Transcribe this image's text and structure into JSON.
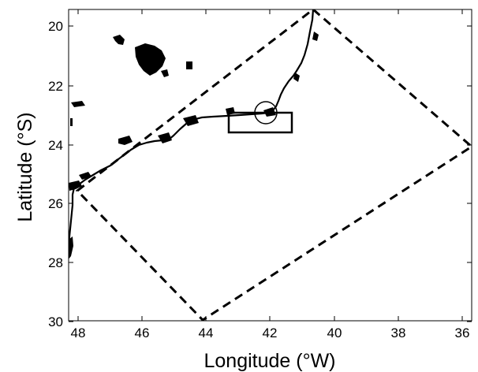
{
  "map": {
    "xlabel": "Longitude (°W)",
    "ylabel": "Latitude (°S)",
    "x_ticks": [
      "48",
      "46",
      "44",
      "42",
      "40",
      "38",
      "36"
    ],
    "y_ticks": [
      "20",
      "22",
      "24",
      "26",
      "28",
      "30"
    ]
  },
  "chart_data": {
    "type": "map",
    "xlabel": "Longitude (°W)",
    "ylabel": "Latitude (°S)",
    "xlim": [
      48.6,
      35.0
    ],
    "ylim": [
      30.2,
      19.4
    ],
    "grid": false,
    "dashed_quadrilateral": [
      [
        39.7,
        19.4
      ],
      [
        35.0,
        24.0
      ],
      [
        44.0,
        29.9
      ],
      [
        48.5,
        25.6
      ]
    ],
    "rectangle": {
      "lon_min": 41.2,
      "lon_max": 43.3,
      "lat_min": 22.9,
      "lat_max": 23.6
    },
    "circle_center": [
      42.0,
      22.9
    ],
    "coastline": [
      [
        48.6,
        27.8
      ],
      [
        48.5,
        26.8
      ],
      [
        48.45,
        25.9
      ],
      [
        48.35,
        25.5
      ],
      [
        47.9,
        25.2
      ],
      [
        47.5,
        25.0
      ],
      [
        47.0,
        24.75
      ],
      [
        46.6,
        24.5
      ],
      [
        46.2,
        24.25
      ],
      [
        45.8,
        24.1
      ],
      [
        45.35,
        24.05
      ],
      [
        45.0,
        24.0
      ],
      [
        44.6,
        23.55
      ],
      [
        44.15,
        23.1
      ],
      [
        43.7,
        23.0
      ],
      [
        43.2,
        22.9
      ],
      [
        42.7,
        22.9
      ],
      [
        42.25,
        22.85
      ],
      [
        41.8,
        22.6
      ],
      [
        41.5,
        22.05
      ],
      [
        41.2,
        21.8
      ],
      [
        40.8,
        21.1
      ],
      [
        40.35,
        20.55
      ],
      [
        40.05,
        20.0
      ],
      [
        39.7,
        19.4
      ]
    ],
    "islands": [
      [
        43.8,
        22.85
      ],
      [
        42.5,
        22.8
      ],
      [
        41.9,
        22.8
      ]
    ]
  }
}
